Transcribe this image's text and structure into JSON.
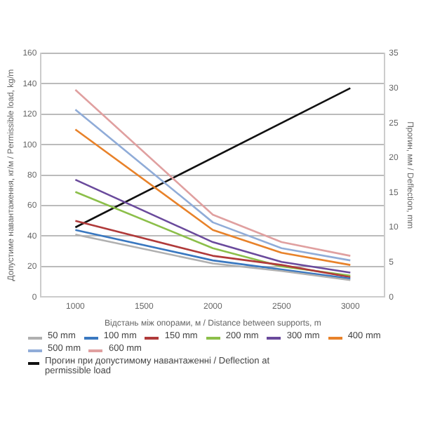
{
  "chart_data": {
    "type": "line",
    "xlabel": "Відстань між опорами, м / Distance between supports, m",
    "ylabel": "Допустиме навантаження, кг/м / Permissible load, kg/m",
    "y2label": "Прогин, мм / Deflection, mm",
    "x": [
      1000,
      2000,
      2500,
      3000
    ],
    "xlim": [
      750,
      3250
    ],
    "xticks": [
      1000,
      1500,
      2000,
      2500,
      3000
    ],
    "ylim": [
      0,
      160
    ],
    "yticks": [
      0,
      20,
      40,
      60,
      80,
      100,
      120,
      140,
      160
    ],
    "y2lim": [
      0,
      35
    ],
    "y2ticks": [
      0,
      5,
      10,
      15,
      20,
      25,
      30,
      35
    ],
    "grid": "y",
    "legend": "bottom",
    "marker": "none",
    "line_style": "solid",
    "series": [
      {
        "name": "50 mm",
        "color": "#b0b0b0",
        "values": [
          41,
          22,
          17,
          11
        ]
      },
      {
        "name": "100 mm",
        "color": "#3a78c0",
        "values": [
          44,
          24,
          18,
          12
        ]
      },
      {
        "name": "150 mm",
        "color": "#b03a3a",
        "values": [
          50,
          27,
          21,
          13
        ]
      },
      {
        "name": "200 mm",
        "color": "#8cbf4a",
        "values": [
          69,
          32,
          20,
          14
        ]
      },
      {
        "name": "300 mm",
        "color": "#6a4a9c",
        "values": [
          77,
          36,
          23,
          16
        ]
      },
      {
        "name": "400 mm",
        "color": "#e8822a",
        "values": [
          110,
          44,
          29,
          21
        ]
      },
      {
        "name": "500 mm",
        "color": "#90acd8",
        "values": [
          123,
          49,
          32,
          24
        ]
      },
      {
        "name": "600 mm",
        "color": "#e0a0a0",
        "values": [
          136,
          54,
          36,
          27
        ]
      },
      {
        "name": "Прогин при допустимому навантаженні / Deflection at permissible load",
        "color": "#111111",
        "axis": "y2",
        "x": [
          1000,
          3000
        ],
        "values": [
          10,
          30
        ]
      }
    ]
  }
}
